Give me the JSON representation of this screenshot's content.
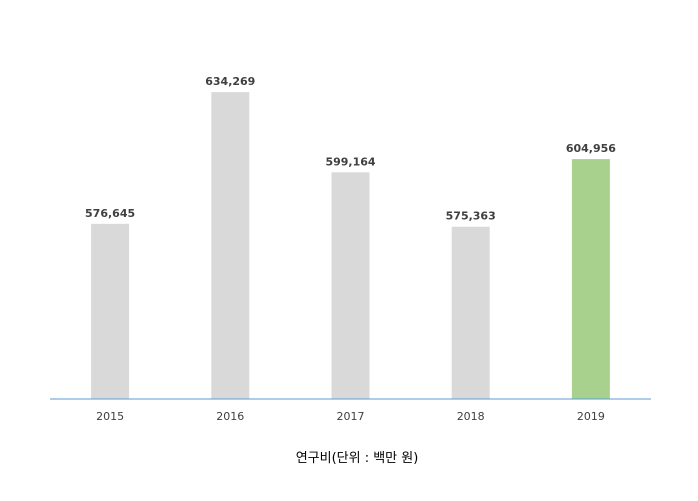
{
  "chart_data": {
    "type": "bar",
    "categories": [
      "2015",
      "2016",
      "2017",
      "2018",
      "2019"
    ],
    "values": [
      576645,
      634269,
      599164,
      575363,
      604956
    ],
    "value_labels": [
      "576,645",
      "634,269",
      "599,164",
      "575,363",
      "604,956"
    ],
    "xlabel": "연구비(단위 : 백만 원)",
    "ylim": [
      500000,
      640000
    ],
    "grid": false,
    "legend": "none",
    "colors": {
      "default_bar": "#d9d9d9",
      "highlight_bar": "#a9d18e",
      "axis_line": "#5b9bd5"
    },
    "highlight_index": 4
  }
}
